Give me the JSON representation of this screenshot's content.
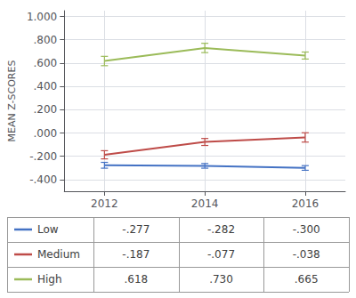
{
  "chart_data": {
    "type": "line",
    "ylabel": "MEAN Z-SCORES",
    "x": [
      2012,
      2014,
      2016
    ],
    "series": [
      {
        "name": "Low",
        "color": "#4472C4",
        "values": [
          -0.277,
          -0.282,
          -0.3
        ],
        "errors": [
          0.025,
          0.02,
          0.02
        ],
        "value_labels": [
          "-.277",
          "-.282",
          "-.300"
        ]
      },
      {
        "name": "Medium",
        "color": "#BE4B48",
        "values": [
          -0.187,
          -0.077,
          -0.038
        ],
        "errors": [
          0.035,
          0.03,
          0.04
        ],
        "value_labels": [
          "-.187",
          "-.077",
          "-.038"
        ]
      },
      {
        "name": "High",
        "color": "#9BBB59",
        "values": [
          0.618,
          0.73,
          0.665
        ],
        "errors": [
          0.04,
          0.04,
          0.03
        ],
        "value_labels": [
          ".618",
          ".730",
          ".665"
        ]
      }
    ],
    "xlim": [
      2011.2,
      2016.8
    ],
    "xticks": [
      2012,
      2014,
      2016
    ],
    "ylim": [
      -0.5,
      1.05
    ],
    "yticks": [
      {
        "value": -0.4,
        "label": "-.400"
      },
      {
        "value": -0.2,
        "label": "-.200"
      },
      {
        "value": 0.0,
        "label": ".000"
      },
      {
        "value": 0.2,
        "label": ".200"
      },
      {
        "value": 0.4,
        "label": ".400"
      },
      {
        "value": 0.6,
        "label": ".600"
      },
      {
        "value": 0.8,
        "label": ".800"
      },
      {
        "value": 1.0,
        "label": "1.000"
      }
    ],
    "grid": true
  }
}
